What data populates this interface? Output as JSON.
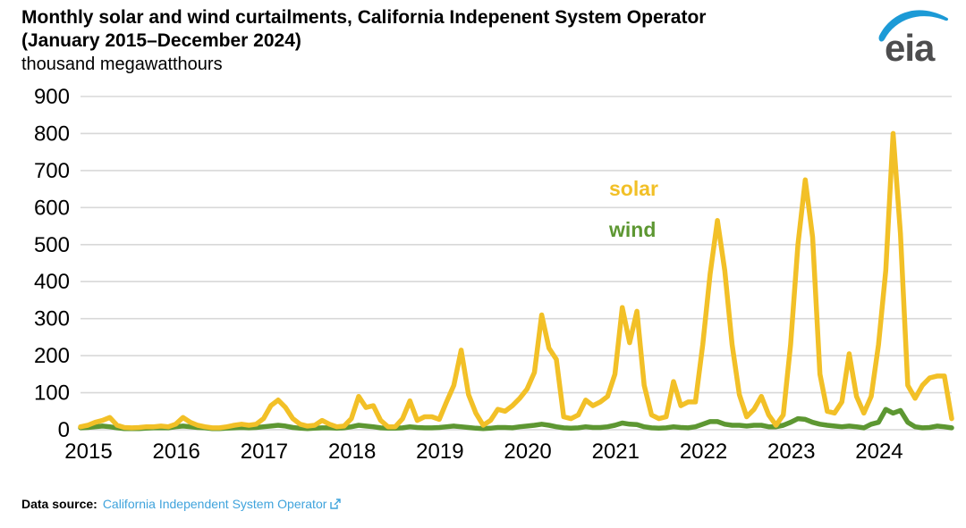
{
  "header": {
    "title_line1": "Monthly solar and wind curtailments, California Indepenent System Operator",
    "title_line2": "(January 2015–December 2024)",
    "unit_label": "thousand megawatthours",
    "logo_text": "eia"
  },
  "legend": {
    "solar_label": "solar",
    "wind_label": "wind"
  },
  "footer": {
    "source_prefix": "Data source:",
    "source_link_text": "California Independent System Operator",
    "external_link_icon": "external-link-icon"
  },
  "colors": {
    "solar": "#F2C027",
    "wind": "#5D9732",
    "gridline": "#D8D8D8",
    "axis_text": "#000000",
    "link_blue": "#3FA3DC",
    "logo_blue": "#1C9AD6",
    "logo_gray": "#4D4D4E"
  },
  "chart_data": {
    "type": "line",
    "title": "Monthly solar and wind curtailments, California Indepenent System Operator (January 2015–December 2024)",
    "ylabel": "thousand megawatthours",
    "xlabel": "",
    "ylim": [
      0,
      900
    ],
    "ytick_step": 100,
    "ytick_labels": [
      "0",
      "100",
      "200",
      "300",
      "400",
      "500",
      "600",
      "700",
      "800",
      "900"
    ],
    "xtick_labels": [
      "2015",
      "2016",
      "2017",
      "2018",
      "2019",
      "2020",
      "2021",
      "2022",
      "2023",
      "2024"
    ],
    "x_start": "2015-01",
    "x_end": "2024-12",
    "months_per_label": 12,
    "grid": true,
    "legend_position": "inside-upper-middle",
    "series": [
      {
        "name": "solar",
        "color": "#F2C027",
        "values": [
          8,
          12,
          20,
          25,
          33,
          12,
          6,
          5,
          6,
          8,
          8,
          10,
          8,
          15,
          33,
          20,
          12,
          8,
          5,
          5,
          8,
          12,
          15,
          12,
          15,
          30,
          65,
          80,
          60,
          30,
          15,
          10,
          12,
          25,
          15,
          8,
          10,
          30,
          90,
          60,
          65,
          25,
          8,
          8,
          30,
          78,
          25,
          35,
          35,
          28,
          75,
          120,
          215,
          95,
          45,
          12,
          25,
          55,
          50,
          65,
          85,
          110,
          155,
          310,
          220,
          190,
          35,
          30,
          40,
          80,
          65,
          75,
          90,
          150,
          330,
          235,
          320,
          120,
          40,
          30,
          35,
          130,
          65,
          75,
          75,
          230,
          420,
          565,
          430,
          230,
          95,
          35,
          55,
          90,
          40,
          12,
          40,
          230,
          500,
          675,
          520,
          150,
          50,
          45,
          75,
          205,
          90,
          45,
          90,
          230,
          430,
          800,
          530,
          120,
          85,
          120,
          140,
          145,
          145,
          30
        ]
      },
      {
        "name": "wind",
        "color": "#5D9732",
        "values": [
          5,
          6,
          8,
          10,
          8,
          5,
          3,
          3,
          3,
          4,
          5,
          5,
          5,
          8,
          10,
          8,
          6,
          5,
          3,
          3,
          4,
          5,
          6,
          5,
          6,
          8,
          10,
          12,
          10,
          6,
          4,
          3,
          4,
          5,
          5,
          4,
          5,
          8,
          12,
          10,
          8,
          5,
          4,
          4,
          5,
          8,
          6,
          5,
          5,
          6,
          8,
          10,
          8,
          6,
          4,
          3,
          4,
          6,
          6,
          5,
          8,
          10,
          12,
          15,
          12,
          8,
          5,
          4,
          5,
          8,
          6,
          6,
          8,
          12,
          18,
          15,
          14,
          8,
          5,
          4,
          5,
          8,
          6,
          5,
          8,
          15,
          22,
          22,
          15,
          12,
          12,
          10,
          12,
          12,
          8,
          8,
          12,
          20,
          30,
          28,
          20,
          15,
          12,
          10,
          8,
          10,
          8,
          5,
          15,
          20,
          55,
          45,
          52,
          20,
          8,
          5,
          6,
          10,
          8,
          5
        ]
      }
    ]
  }
}
